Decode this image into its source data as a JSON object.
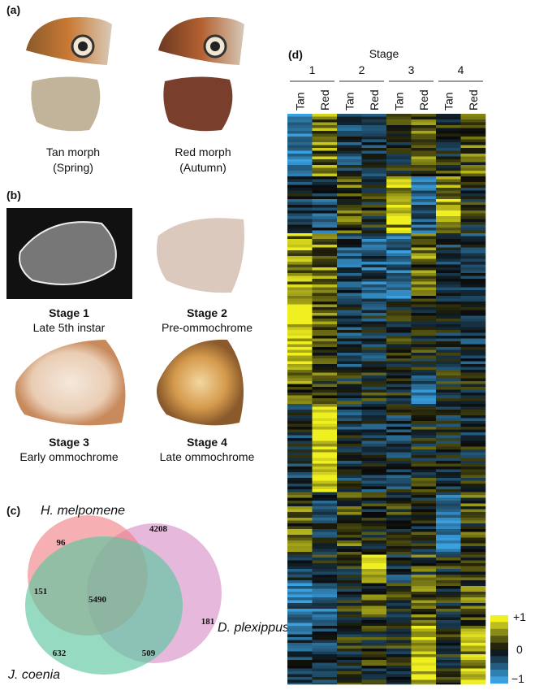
{
  "panels": {
    "a": {
      "label": "(a)",
      "morphs": [
        {
          "name": "Tan morph",
          "season": "(Spring)"
        },
        {
          "name": "Red morph",
          "season": "(Autumn)"
        }
      ]
    },
    "b": {
      "label": "(b)",
      "stages": [
        {
          "title": "Stage 1",
          "desc": "Late 5th instar"
        },
        {
          "title": "Stage 2",
          "desc": "Pre-ommochrome"
        },
        {
          "title": "Stage 3",
          "desc": "Early ommochrome"
        },
        {
          "title": "Stage 4",
          "desc": "Late ommochrome"
        }
      ]
    },
    "c": {
      "label": "(c)",
      "species": [
        "H. melpomene",
        "D. plexippus",
        "J. coenia"
      ],
      "counts": [
        96,
        4208,
        151,
        5490,
        181,
        632,
        509
      ]
    },
    "d": {
      "label": "(d)",
      "axis_title": "Stage",
      "stages": [
        "1",
        "2",
        "3",
        "4"
      ],
      "morphs": [
        "Tan",
        "Red"
      ],
      "colorbar": [
        "+1",
        "0",
        "−1"
      ]
    }
  }
}
